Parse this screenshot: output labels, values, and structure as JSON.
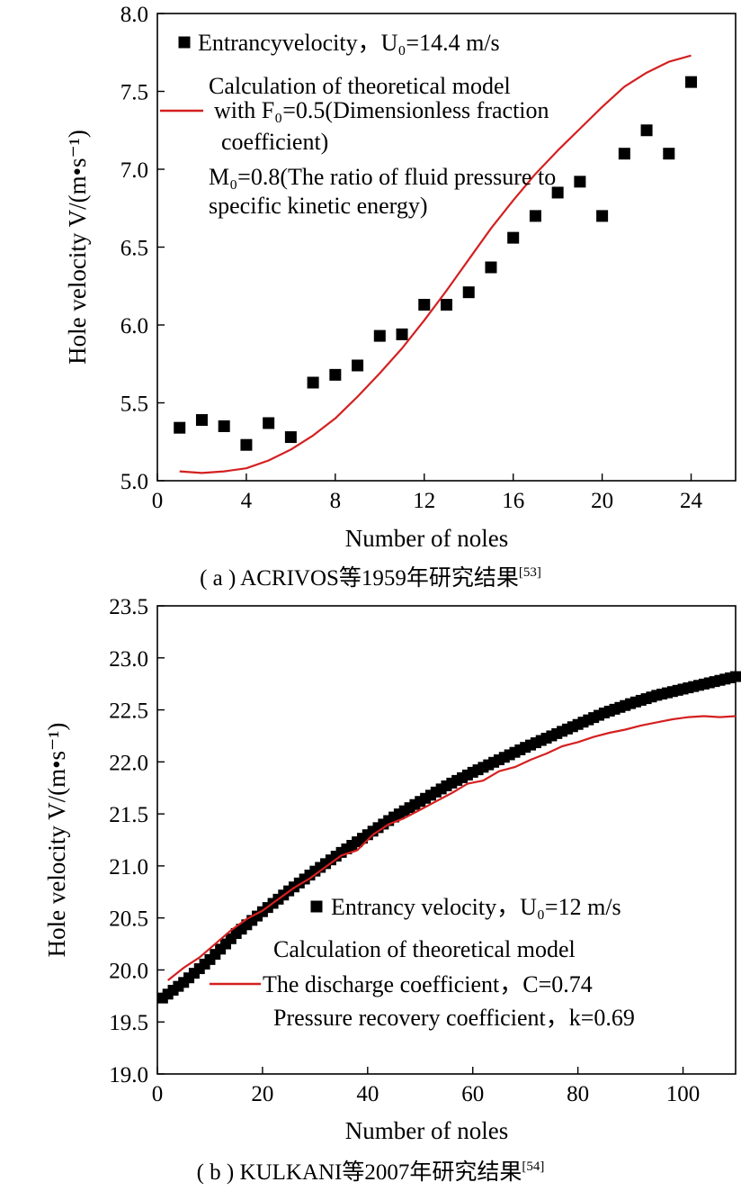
{
  "chart_data": [
    {
      "type": "scatter",
      "xlabel": "Number of noles",
      "ylabel": "Hole velocity V/(m•s⁻¹)",
      "xlim": [
        0,
        26
      ],
      "ylim": [
        5.0,
        8.0
      ],
      "xticks": [
        0,
        4,
        8,
        12,
        16,
        20,
        24
      ],
      "yticks": [
        5.0,
        5.5,
        6.0,
        6.5,
        7.0,
        7.5,
        8.0
      ],
      "legend": {
        "placement": "top-left",
        "scatter_label": "Entrancyvelocity，U₀=14.4 m/s",
        "line_lines": [
          "Calculation of theoretical model",
          "with F₀=0.5(Dimensionless fraction",
          "coefficient)",
          "M₀=0.8(The ratio of fluid pressure to",
          "specific kinetic energy)"
        ]
      },
      "caption": "( a ) ACRIVOS等1959年研究结果",
      "caption_ref": "[53]",
      "series": [
        {
          "kind": "scatter",
          "color": "#000000",
          "x": [
            1,
            2,
            3,
            4,
            5,
            6,
            7,
            8,
            9,
            10,
            11,
            12,
            13,
            14,
            15,
            16,
            17,
            18,
            19,
            20,
            21,
            22,
            23,
            24
          ],
          "y": [
            5.34,
            5.39,
            5.35,
            5.23,
            5.37,
            5.28,
            5.63,
            5.68,
            5.74,
            5.93,
            5.94,
            6.13,
            6.13,
            6.21,
            6.37,
            6.56,
            6.7,
            6.85,
            6.92,
            6.7,
            7.1,
            7.25,
            7.1,
            7.56
          ]
        },
        {
          "kind": "line",
          "color": "#d42020",
          "x": [
            1,
            2,
            3,
            4,
            5,
            6,
            7,
            8,
            9,
            10,
            11,
            12,
            13,
            14,
            15,
            16,
            17,
            18,
            19,
            20,
            21,
            22,
            23,
            24
          ],
          "y": [
            5.06,
            5.05,
            5.06,
            5.08,
            5.13,
            5.2,
            5.29,
            5.4,
            5.54,
            5.69,
            5.85,
            6.03,
            6.22,
            6.42,
            6.62,
            6.8,
            6.97,
            7.12,
            7.26,
            7.4,
            7.53,
            7.62,
            7.69,
            7.73
          ]
        }
      ]
    },
    {
      "type": "scatter",
      "xlabel": "Number of noles",
      "ylabel": "Hole velocity V/(m•s⁻¹)",
      "xlim": [
        0,
        110
      ],
      "ylim": [
        19.0,
        23.5
      ],
      "xticks": [
        0,
        20,
        40,
        60,
        80,
        100
      ],
      "yticks": [
        19.0,
        19.5,
        20.0,
        20.5,
        21.0,
        21.5,
        22.0,
        22.5,
        23.0,
        23.5
      ],
      "legend": {
        "placement": "bottom-right",
        "scatter_label": "Entrancy velocity，U₀=12 m/s",
        "line_lines": [
          "Calculation of theoretical model",
          "The discharge coefficient，C=0.74",
          "Pressure recovery coefficient，k=0.69"
        ]
      },
      "caption": "( b ) KULKANI等2007年研究结果",
      "caption_ref": "[54]",
      "series": [
        {
          "kind": "scatter-dense",
          "color": "#000000",
          "x": [
            1,
            5,
            10,
            15,
            20,
            25,
            30,
            35,
            40,
            45,
            50,
            55,
            60,
            65,
            70,
            75,
            80,
            85,
            90,
            95,
            100,
            105,
            110
          ],
          "y": [
            19.73,
            19.88,
            20.1,
            20.35,
            20.56,
            20.76,
            20.95,
            21.13,
            21.3,
            21.47,
            21.62,
            21.77,
            21.9,
            22.02,
            22.14,
            22.25,
            22.36,
            22.47,
            22.56,
            22.64,
            22.7,
            22.76,
            22.82
          ]
        },
        {
          "kind": "line",
          "color": "#d42020",
          "x": [
            2,
            5,
            8,
            11,
            14,
            17,
            20,
            23,
            26,
            29,
            32,
            35,
            38,
            41,
            44,
            47,
            50,
            53,
            56,
            59,
            62,
            65,
            68,
            71,
            74,
            77,
            80,
            83,
            86,
            89,
            92,
            95,
            98,
            101,
            104,
            107,
            110
          ],
          "y": [
            19.9,
            20.02,
            20.12,
            20.25,
            20.38,
            20.49,
            20.57,
            20.68,
            20.79,
            20.88,
            20.99,
            21.1,
            21.15,
            21.3,
            21.4,
            21.46,
            21.54,
            21.62,
            21.7,
            21.79,
            21.82,
            21.91,
            21.95,
            22.02,
            22.08,
            22.15,
            22.19,
            22.24,
            22.28,
            22.31,
            22.35,
            22.38,
            22.41,
            22.43,
            22.44,
            22.43,
            22.44
          ]
        }
      ]
    }
  ]
}
